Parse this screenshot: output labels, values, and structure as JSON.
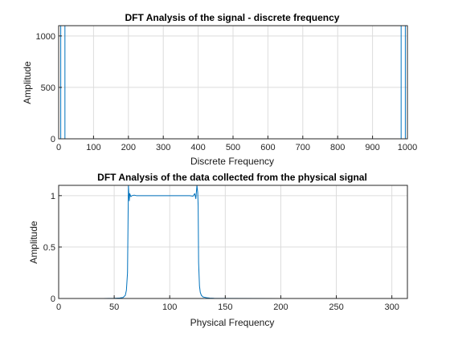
{
  "chart_data": [
    {
      "type": "line",
      "title": "DFT Analysis of the signal - discrete frequency",
      "xlabel": "Discrete Frequency",
      "ylabel": "Amplitude",
      "xlim": [
        0,
        1000
      ],
      "ylim": [
        0,
        1100
      ],
      "xticks": [
        0,
        100,
        200,
        300,
        400,
        500,
        600,
        700,
        800,
        900,
        1000
      ],
      "yticks": [
        0,
        500,
        1000
      ],
      "grid": true,
      "color": "#0072bd",
      "series": [
        {
          "x": [
            0,
            1,
            2,
            3,
            4,
            6,
            6,
            6,
            7,
            8,
            10,
            12,
            14,
            16,
            18,
            18,
            18,
            19,
            20,
            22,
            30,
            980,
            981,
            982,
            982,
            982,
            984,
            986,
            988,
            990,
            992,
            994,
            994,
            994,
            996,
            998,
            999,
            1000
          ],
          "y": [
            0,
            0,
            0,
            0,
            0,
            0,
            1100,
            0,
            0,
            0,
            0,
            0,
            0,
            0,
            0,
            1100,
            0,
            0,
            0,
            0,
            0,
            0,
            0,
            0,
            1100,
            0,
            0,
            0,
            0,
            0,
            0,
            0,
            1100,
            0,
            0,
            0,
            0,
            0
          ]
        }
      ]
    },
    {
      "type": "line",
      "title": "DFT Analysis of the data collected from the physical signal",
      "xlabel": "Physical Frequency",
      "ylabel": "Amplitude",
      "xlim": [
        0,
        314
      ],
      "ylim": [
        0,
        1.1
      ],
      "xticks": [
        0,
        50,
        100,
        150,
        200,
        250,
        300
      ],
      "yticks": [
        0,
        0.5,
        1
      ],
      "grid": true,
      "color": "#0072bd",
      "series": [
        {
          "x": [
            0,
            40,
            50,
            52,
            55,
            58,
            60,
            61,
            62,
            62.8,
            63.2,
            63.6,
            64,
            65,
            66,
            68,
            70,
            80,
            90,
            100,
            110,
            118,
            121,
            122.5,
            123.5,
            124.5,
            125.2,
            125.6,
            126,
            126.8,
            127.5,
            128.5,
            130,
            133,
            136,
            140,
            150,
            200,
            250,
            314
          ],
          "y": [
            0,
            0,
            0.002,
            0.003,
            0.005,
            0.01,
            0.03,
            0.08,
            0.25,
            1.1,
            1.02,
            0.95,
            1.02,
            0.99,
            1.0,
            1.005,
            1.0,
            1.0,
            1.0,
            1.0,
            1.0,
            1.0,
            0.995,
            1.02,
            0.97,
            1.1,
            1.03,
            0.9,
            0.35,
            0.12,
            0.06,
            0.03,
            0.015,
            0.008,
            0.004,
            0.002,
            0.001,
            0,
            0,
            0
          ]
        }
      ]
    }
  ]
}
